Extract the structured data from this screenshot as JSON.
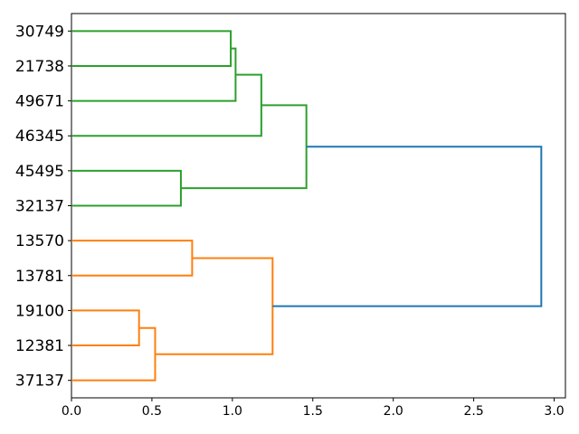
{
  "figure": {
    "title": "",
    "background": "#ffffff"
  },
  "chart_data": {
    "type": "dendrogram",
    "orientation": "leaves-left-root-right",
    "title": "",
    "xlabel": "",
    "ylabel": "",
    "grid": false,
    "legend": null,
    "leaves": [
      "30749",
      "21738",
      "49671",
      "46345",
      "45495",
      "32137",
      "13570",
      "13781",
      "19100",
      "12381",
      "37137"
    ],
    "links": [
      {
        "id": "G1",
        "a": "30749",
        "b": "21738",
        "distance": 0.99,
        "color_key": "green"
      },
      {
        "id": "G2",
        "a": "G1",
        "b": "49671",
        "distance": 1.02,
        "color_key": "green"
      },
      {
        "id": "G3",
        "a": "G2",
        "b": "46345",
        "distance": 1.18,
        "color_key": "green"
      },
      {
        "id": "G4",
        "a": "45495",
        "b": "32137",
        "distance": 0.68,
        "color_key": "green"
      },
      {
        "id": "G5",
        "a": "G3",
        "b": "G4",
        "distance": 1.46,
        "color_key": "green"
      },
      {
        "id": "O1",
        "a": "13570",
        "b": "13781",
        "distance": 0.75,
        "color_key": "orange"
      },
      {
        "id": "O2",
        "a": "19100",
        "b": "12381",
        "distance": 0.42,
        "color_key": "orange"
      },
      {
        "id": "O3",
        "a": "O2",
        "b": "37137",
        "distance": 0.52,
        "color_key": "orange"
      },
      {
        "id": "O4",
        "a": "O1",
        "b": "O3",
        "distance": 1.25,
        "color_key": "orange"
      },
      {
        "id": "ROOT",
        "a": "G5",
        "b": "O4",
        "distance": 2.92,
        "color_key": "blue"
      }
    ],
    "colors": {
      "green": "#2ca02c",
      "orange": "#ff7f0e",
      "blue": "#1f77b4",
      "axis": "#000000"
    },
    "x_axis": {
      "tick_labels": [
        "0.0",
        "0.5",
        "1.0",
        "1.5",
        "2.0",
        "2.5",
        "3.0"
      ],
      "tick_values": [
        0.0,
        0.5,
        1.0,
        1.5,
        2.0,
        2.5,
        3.0
      ],
      "range": [
        0,
        3.07
      ]
    }
  }
}
